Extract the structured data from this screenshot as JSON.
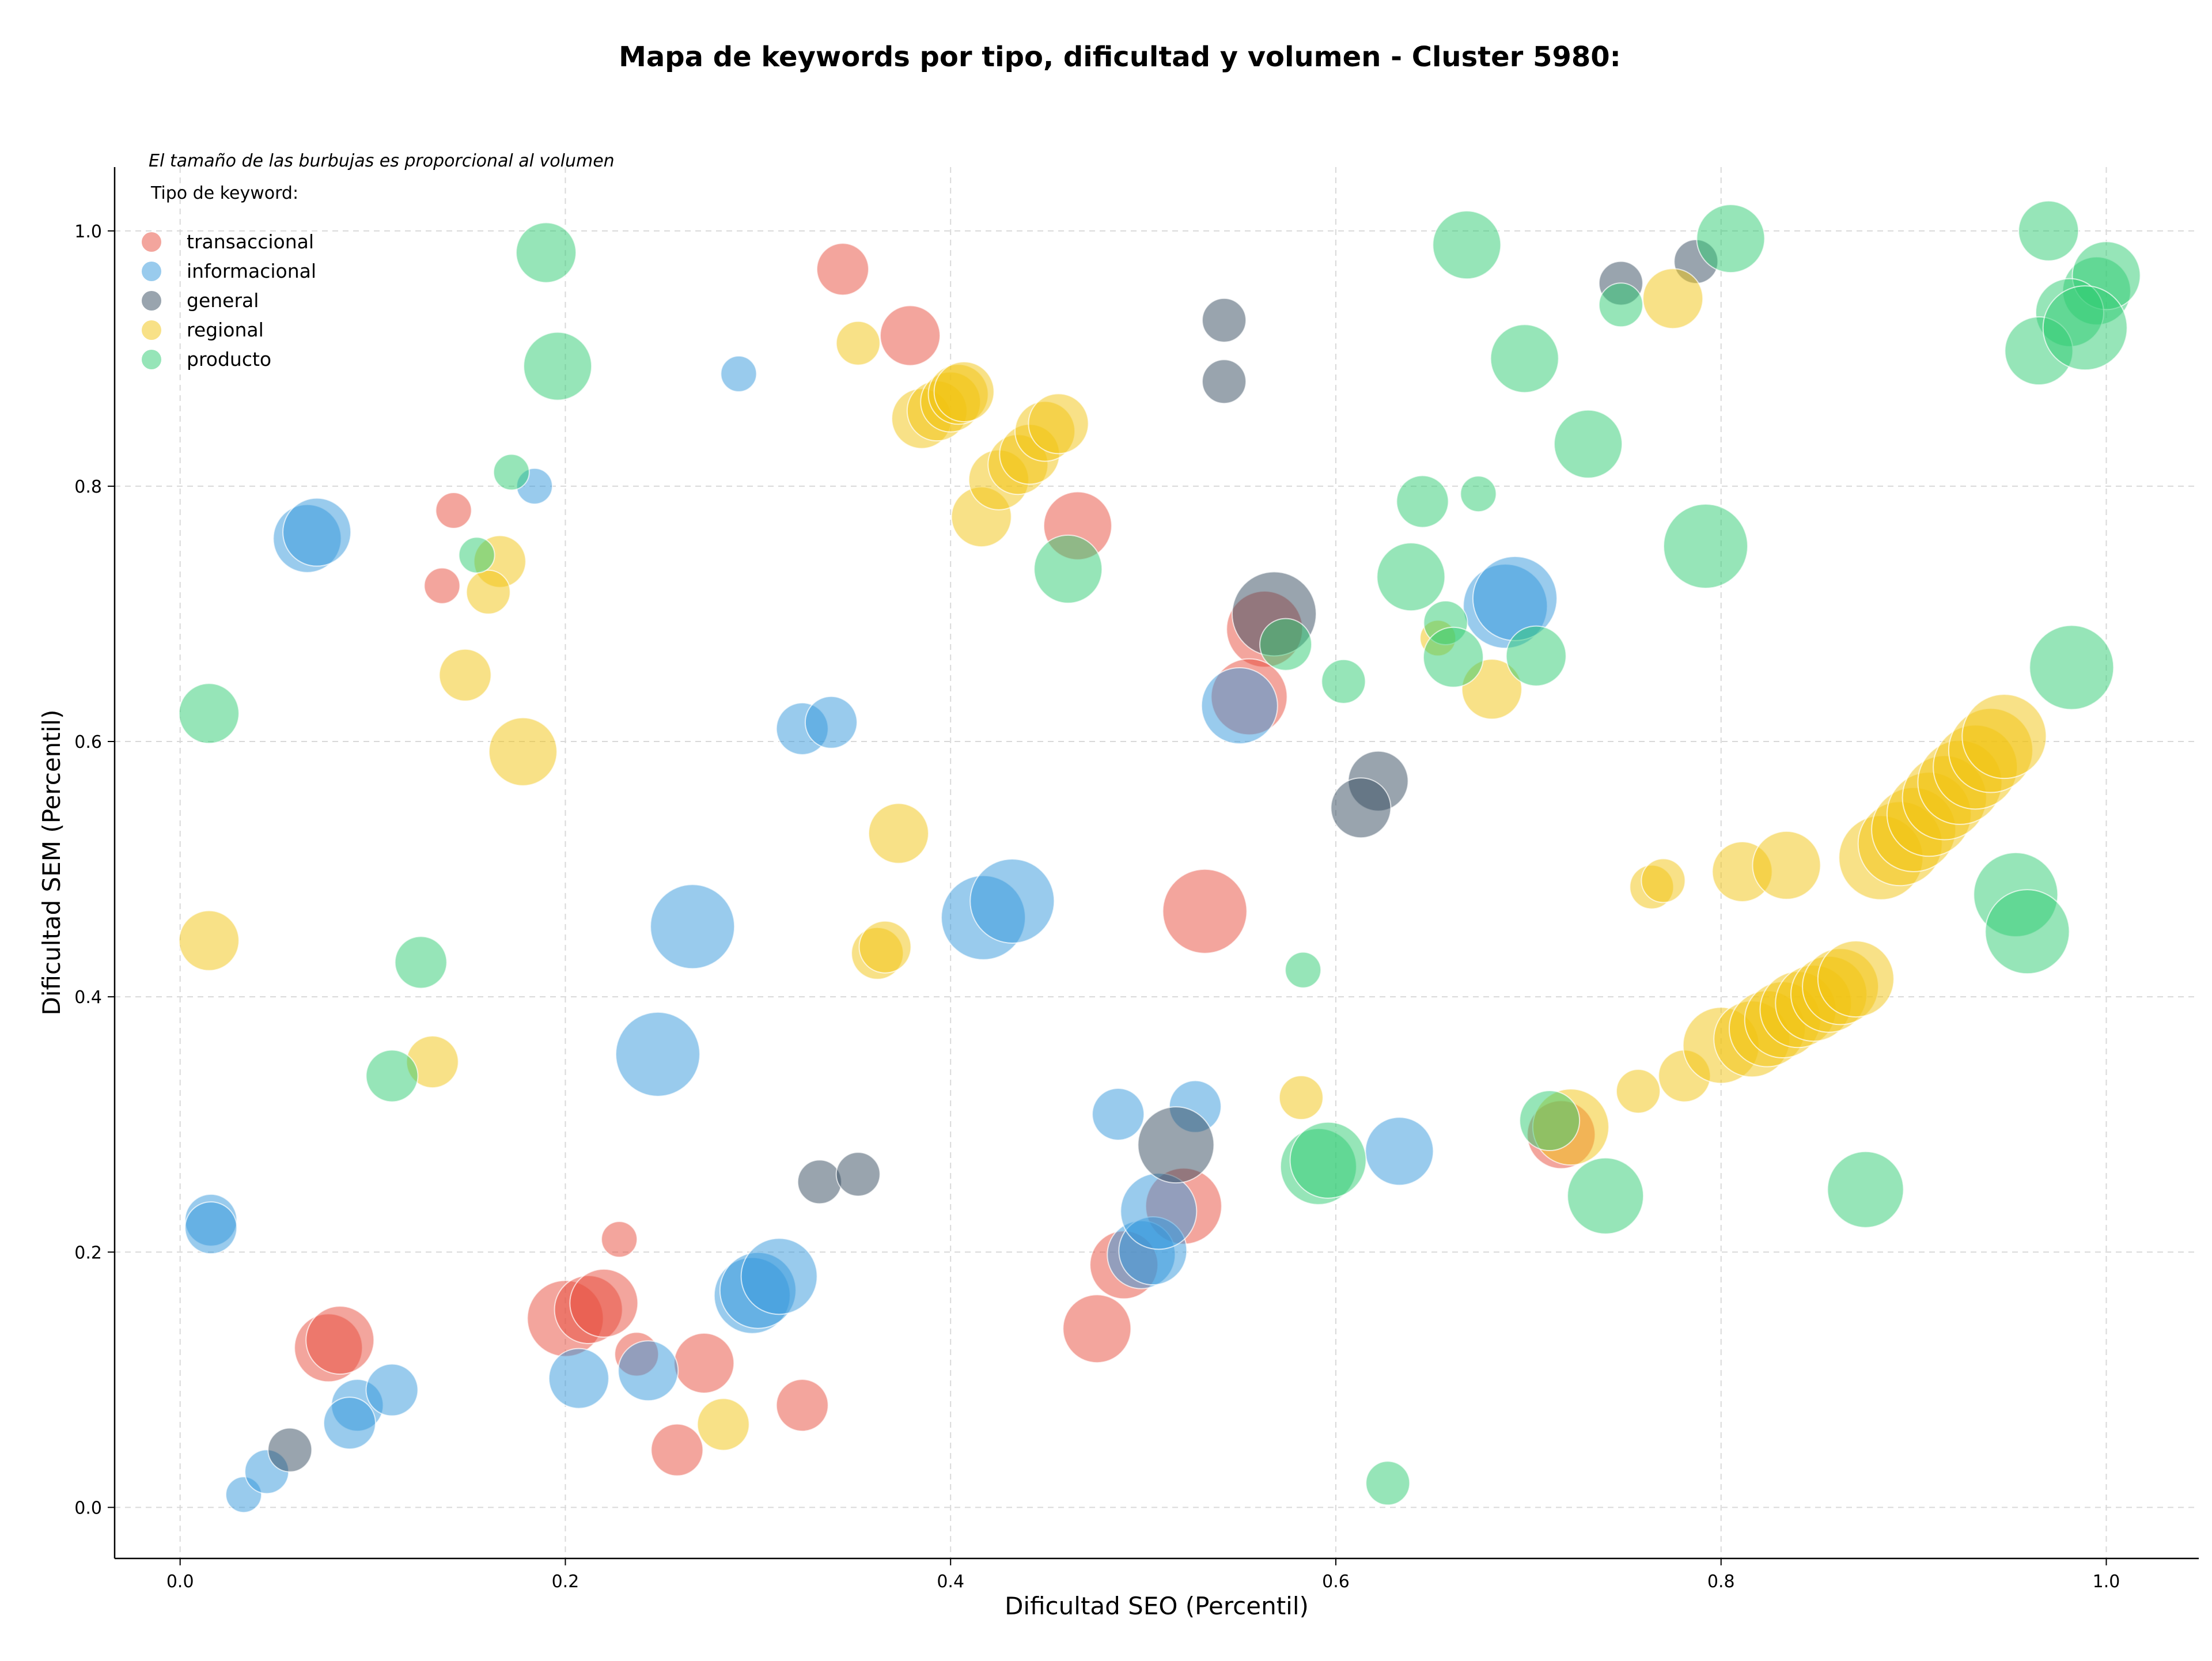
{
  "chart_data": {
    "type": "scatter",
    "title": "Mapa de keywords por tipo, dificultad y volumen - Cluster 5980:",
    "xlabel": "Dificultad SEO (Percentil)",
    "ylabel": "Dificultad SEM (Percentil)",
    "xlim": [
      -0.034,
      1.048
    ],
    "ylim": [
      -0.04,
      1.05
    ],
    "xticks": [
      0.0,
      0.2,
      0.4,
      0.6,
      0.8,
      1.0
    ],
    "yticks": [
      0.0,
      0.2,
      0.4,
      0.6,
      0.8,
      1.0
    ],
    "xtick_labels": [
      "0.0",
      "0.2",
      "0.4",
      "0.6",
      "0.8",
      "1.0"
    ],
    "ytick_labels": [
      "0.0",
      "0.2",
      "0.4",
      "0.6",
      "0.8",
      "1.0"
    ],
    "grid": true,
    "annotation": "El tamaño de las burbujas es proporcional al volumen",
    "legend_title": "Tipo de keyword:",
    "legend_position": "top-left",
    "size_encoding": "volume (relative 1-10)",
    "series": [
      {
        "name": "transaccional",
        "color": "#e74c3c",
        "points": [
          [
            0.142,
            0.781,
            3
          ],
          [
            0.136,
            0.722,
            3
          ],
          [
            0.344,
            0.97,
            5
          ],
          [
            0.379,
            0.918,
            6
          ],
          [
            0.466,
            0.769,
            7
          ],
          [
            0.563,
            0.688,
            8
          ],
          [
            0.555,
            0.635,
            8
          ],
          [
            0.532,
            0.467,
            9
          ],
          [
            0.228,
            0.21,
            3
          ],
          [
            0.077,
            0.125,
            7
          ],
          [
            0.083,
            0.131,
            7
          ],
          [
            0.2,
            0.148,
            8
          ],
          [
            0.212,
            0.155,
            7
          ],
          [
            0.22,
            0.16,
            7
          ],
          [
            0.237,
            0.12,
            4
          ],
          [
            0.272,
            0.113,
            6
          ],
          [
            0.258,
            0.045,
            5
          ],
          [
            0.323,
            0.08,
            5
          ],
          [
            0.476,
            0.14,
            7
          ],
          [
            0.49,
            0.19,
            7
          ],
          [
            0.521,
            0.236,
            8
          ],
          [
            0.717,
            0.292,
            7
          ]
        ]
      },
      {
        "name": "informacional",
        "color": "#3498db",
        "points": [
          [
            0.066,
            0.759,
            7
          ],
          [
            0.071,
            0.764,
            7
          ],
          [
            0.29,
            0.888,
            3
          ],
          [
            0.184,
            0.8,
            3
          ],
          [
            0.323,
            0.61,
            5
          ],
          [
            0.338,
            0.615,
            5
          ],
          [
            0.266,
            0.455,
            9
          ],
          [
            0.248,
            0.355,
            9
          ],
          [
            0.417,
            0.462,
            9
          ],
          [
            0.432,
            0.475,
            9
          ],
          [
            0.55,
            0.628,
            8
          ],
          [
            0.688,
            0.706,
            9
          ],
          [
            0.693,
            0.712,
            9
          ],
          [
            0.487,
            0.308,
            5
          ],
          [
            0.527,
            0.314,
            5
          ],
          [
            0.633,
            0.279,
            7
          ],
          [
            0.016,
            0.225,
            5
          ],
          [
            0.016,
            0.219,
            5
          ],
          [
            0.033,
            0.01,
            3
          ],
          [
            0.045,
            0.028,
            4
          ],
          [
            0.092,
            0.08,
            5
          ],
          [
            0.088,
            0.066,
            5
          ],
          [
            0.11,
            0.092,
            5
          ],
          [
            0.207,
            0.101,
            6
          ],
          [
            0.243,
            0.107,
            6
          ],
          [
            0.297,
            0.166,
            8
          ],
          [
            0.3,
            0.17,
            8
          ],
          [
            0.311,
            0.181,
            8
          ],
          [
            0.499,
            0.198,
            7
          ],
          [
            0.505,
            0.201,
            7
          ],
          [
            0.508,
            0.232,
            8
          ]
        ]
      },
      {
        "name": "general",
        "color": "#34495e",
        "points": [
          [
            0.542,
            0.93,
            4
          ],
          [
            0.542,
            0.882,
            4
          ],
          [
            0.748,
            0.959,
            4
          ],
          [
            0.787,
            0.976,
            4
          ],
          [
            0.568,
            0.7,
            9
          ],
          [
            0.622,
            0.569,
            6
          ],
          [
            0.613,
            0.548,
            6
          ],
          [
            0.517,
            0.284,
            8
          ],
          [
            0.332,
            0.255,
            4
          ],
          [
            0.352,
            0.261,
            4
          ],
          [
            0.057,
            0.045,
            4
          ]
        ]
      },
      {
        "name": "regional",
        "color": "#f1c40f",
        "points": [
          [
            0.352,
            0.912,
            4
          ],
          [
            0.385,
            0.853,
            6
          ],
          [
            0.393,
            0.859,
            6
          ],
          [
            0.4,
            0.866,
            6
          ],
          [
            0.404,
            0.872,
            6
          ],
          [
            0.407,
            0.874,
            6
          ],
          [
            0.416,
            0.776,
            6
          ],
          [
            0.425,
            0.805,
            6
          ],
          [
            0.435,
            0.817,
            6
          ],
          [
            0.441,
            0.825,
            6
          ],
          [
            0.449,
            0.843,
            6
          ],
          [
            0.456,
            0.849,
            6
          ],
          [
            0.166,
            0.741,
            5
          ],
          [
            0.16,
            0.717,
            4
          ],
          [
            0.148,
            0.652,
            5
          ],
          [
            0.178,
            0.592,
            7
          ],
          [
            0.373,
            0.528,
            6
          ],
          [
            0.362,
            0.434,
            5
          ],
          [
            0.366,
            0.439,
            5
          ],
          [
            0.015,
            0.444,
            6
          ],
          [
            0.131,
            0.349,
            5
          ],
          [
            0.582,
            0.321,
            4
          ],
          [
            0.775,
            0.947,
            6
          ],
          [
            0.653,
            0.681,
            3
          ],
          [
            0.681,
            0.641,
            6
          ],
          [
            0.764,
            0.486,
            4
          ],
          [
            0.77,
            0.491,
            4
          ],
          [
            0.811,
            0.498,
            6
          ],
          [
            0.834,
            0.503,
            7
          ],
          [
            0.757,
            0.326,
            4
          ],
          [
            0.781,
            0.338,
            5
          ],
          [
            0.722,
            0.298,
            8
          ],
          [
            0.282,
            0.065,
            5
          ],
          [
            0.8,
            0.362,
            8
          ],
          [
            0.816,
            0.367,
            8
          ],
          [
            0.824,
            0.375,
            8
          ],
          [
            0.832,
            0.382,
            8
          ],
          [
            0.84,
            0.39,
            8
          ],
          [
            0.848,
            0.395,
            8
          ],
          [
            0.856,
            0.402,
            8
          ],
          [
            0.862,
            0.408,
            8
          ],
          [
            0.87,
            0.414,
            8
          ],
          [
            0.883,
            0.509,
            9
          ],
          [
            0.893,
            0.52,
            9
          ],
          [
            0.9,
            0.531,
            9
          ],
          [
            0.908,
            0.543,
            9
          ],
          [
            0.916,
            0.556,
            9
          ],
          [
            0.924,
            0.568,
            9
          ],
          [
            0.932,
            0.58,
            9
          ],
          [
            0.94,
            0.593,
            9
          ],
          [
            0.947,
            0.604,
            9
          ]
        ]
      },
      {
        "name": "producto",
        "color": "#2ecc71",
        "points": [
          [
            0.19,
            0.983,
            6
          ],
          [
            0.196,
            0.894,
            7
          ],
          [
            0.172,
            0.811,
            3
          ],
          [
            0.154,
            0.746,
            3
          ],
          [
            0.461,
            0.735,
            7
          ],
          [
            0.015,
            0.622,
            6
          ],
          [
            0.125,
            0.427,
            5
          ],
          [
            0.11,
            0.338,
            5
          ],
          [
            0.668,
            0.989,
            7
          ],
          [
            0.698,
            0.9,
            7
          ],
          [
            0.731,
            0.833,
            7
          ],
          [
            0.805,
            0.994,
            7
          ],
          [
            0.792,
            0.753,
            9
          ],
          [
            0.645,
            0.788,
            5
          ],
          [
            0.674,
            0.794,
            3
          ],
          [
            0.639,
            0.729,
            7
          ],
          [
            0.657,
            0.693,
            4
          ],
          [
            0.661,
            0.666,
            6
          ],
          [
            0.704,
            0.667,
            6
          ],
          [
            0.574,
            0.676,
            5
          ],
          [
            0.604,
            0.647,
            4
          ],
          [
            0.748,
            0.942,
            4
          ],
          [
            0.583,
            0.421,
            3
          ],
          [
            0.627,
            0.019,
            4
          ],
          [
            0.591,
            0.267,
            8
          ],
          [
            0.596,
            0.272,
            8
          ],
          [
            0.711,
            0.303,
            6
          ],
          [
            0.74,
            0.244,
            8
          ],
          [
            0.875,
            0.249,
            8
          ],
          [
            0.97,
            1.0,
            6
          ],
          [
            0.995,
            0.953,
            7
          ],
          [
            1.0,
            0.965,
            7
          ],
          [
            0.981,
            0.936,
            7
          ],
          [
            0.965,
            0.906,
            7
          ],
          [
            0.989,
            0.924,
            9
          ],
          [
            0.982,
            0.658,
            9
          ],
          [
            0.953,
            0.48,
            9
          ],
          [
            0.959,
            0.451,
            9
          ]
        ]
      }
    ]
  }
}
